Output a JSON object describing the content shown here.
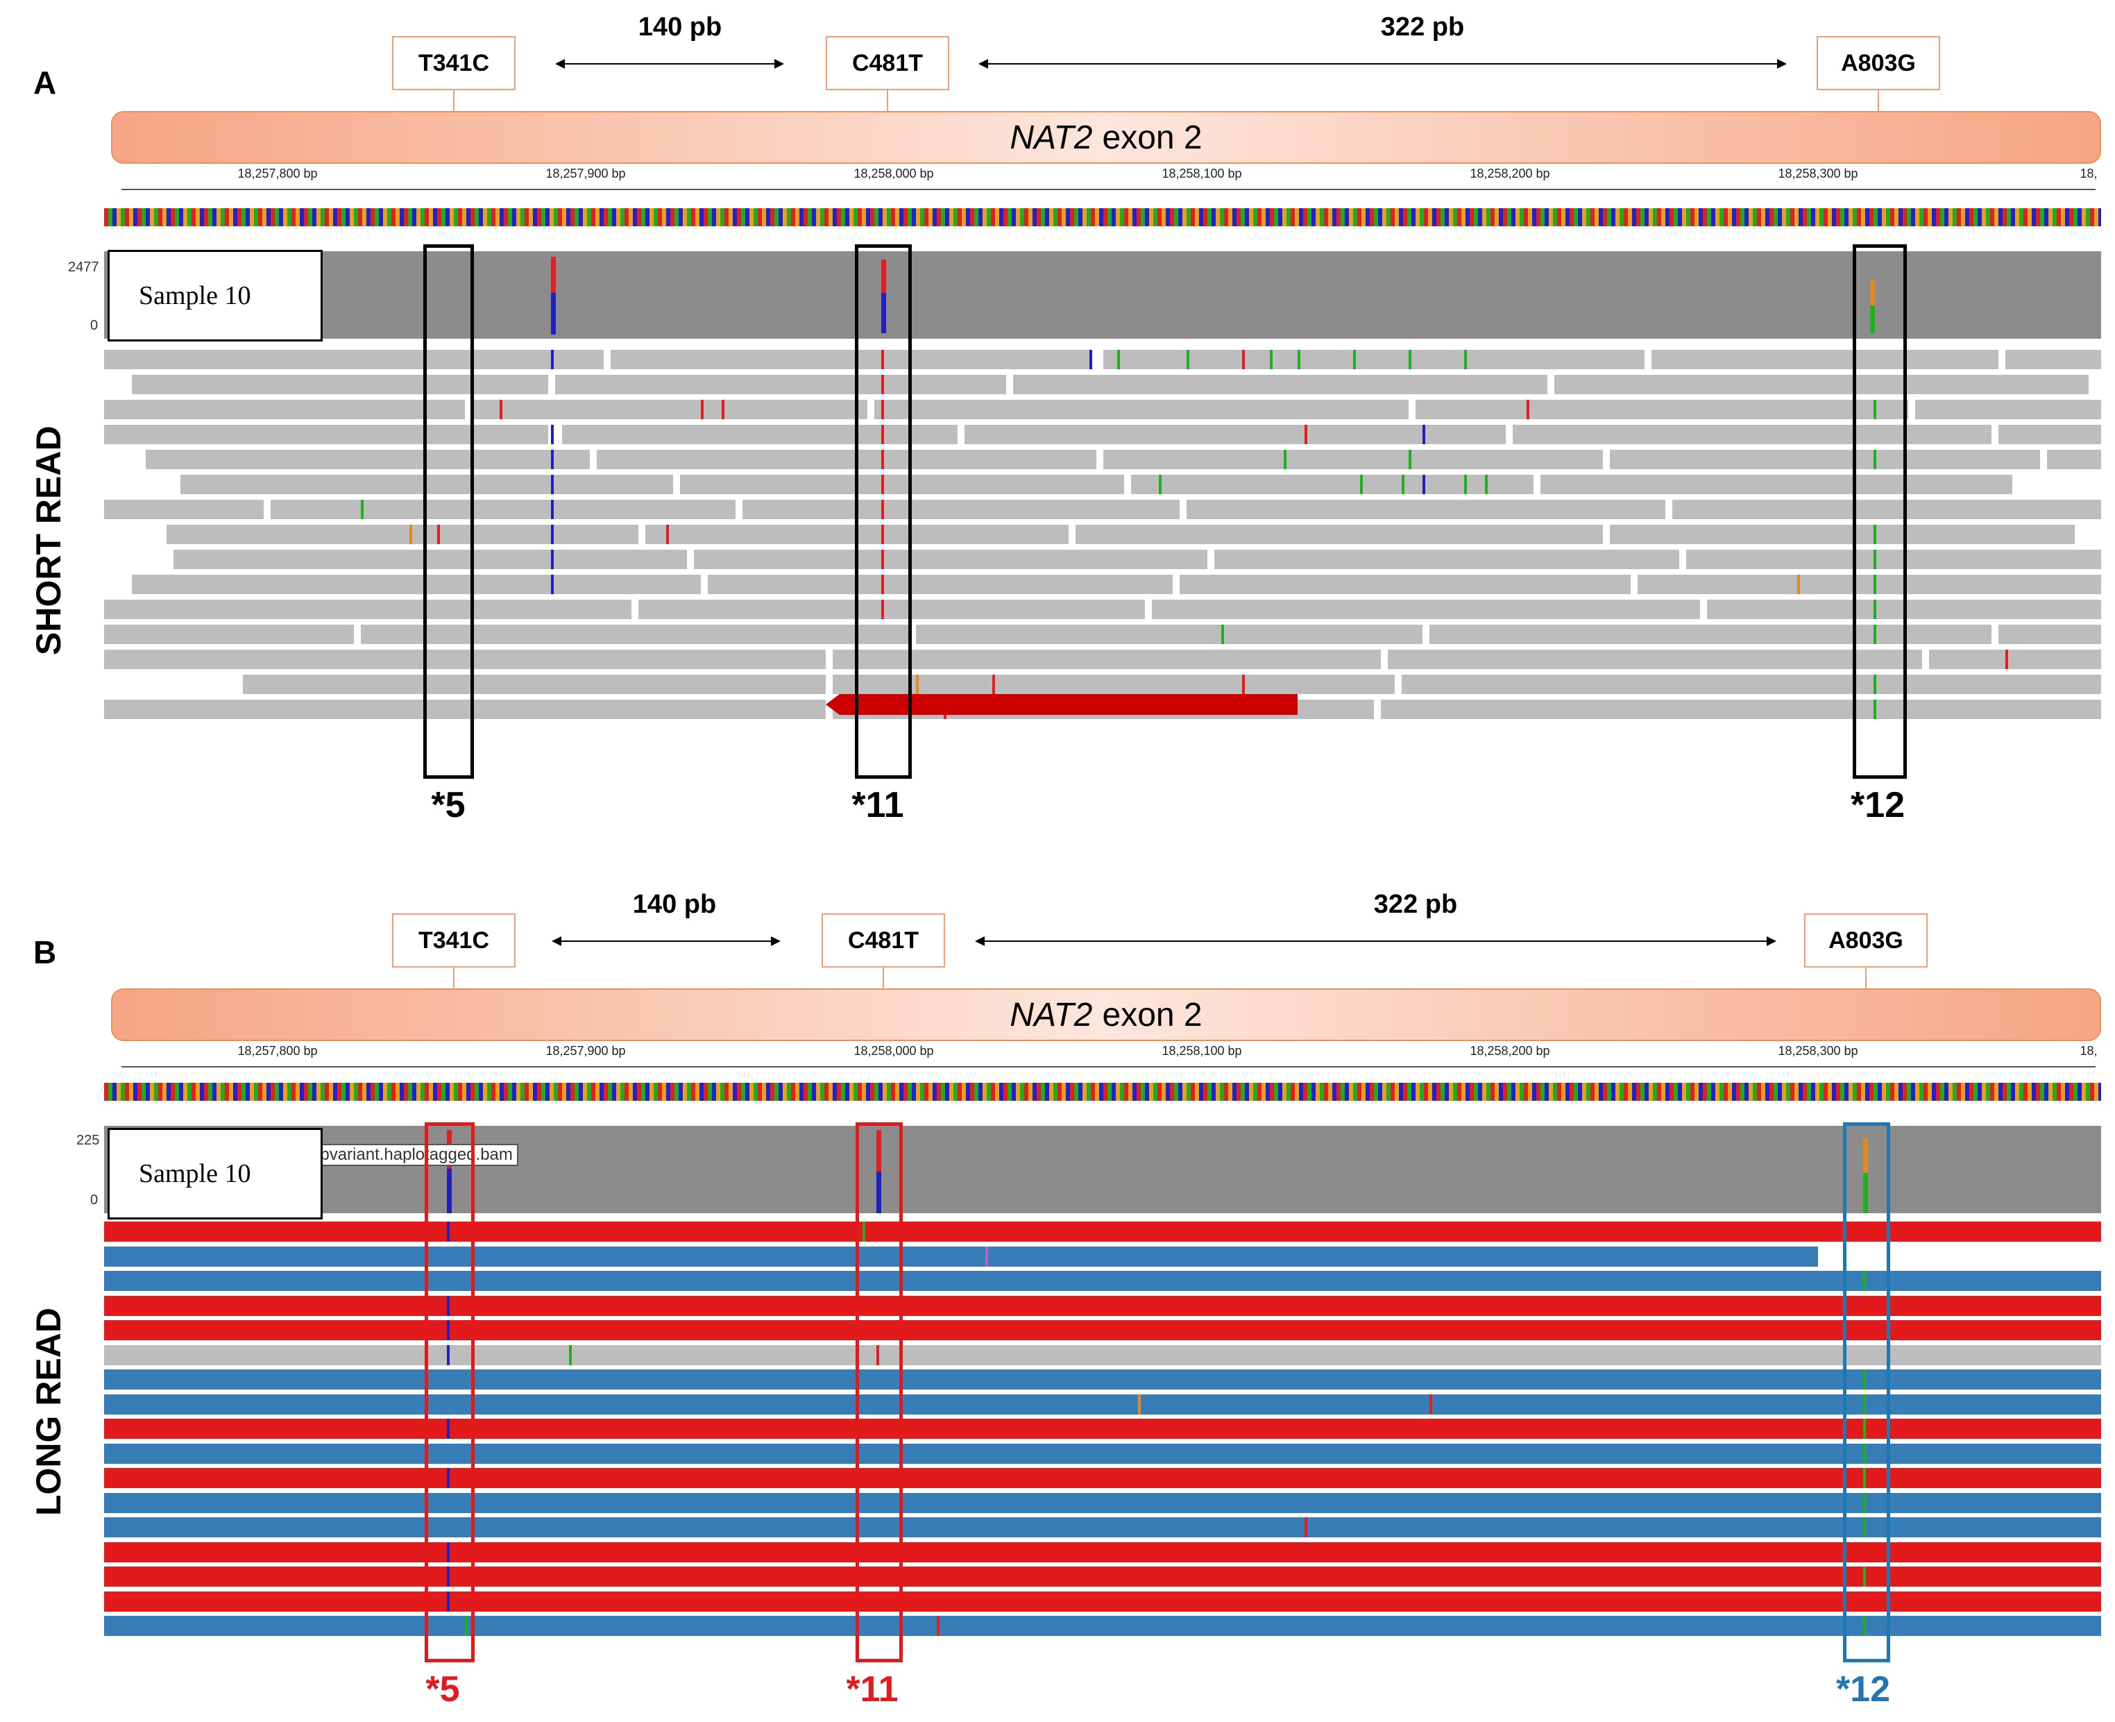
{
  "panels": [
    {
      "label": "A",
      "snps": [
        "T341C",
        "C481T",
        "A803G"
      ],
      "distances": [
        "140 pb",
        "322 pb"
      ],
      "exon": {
        "gene": "NAT2",
        "suffix": "exon 2"
      },
      "ruler_labels": [
        "18,257,800 bp",
        "18,257,900 bp",
        "18,258,000 bp",
        "18,258,100 bp",
        "18,258,200 bp",
        "18,258,300 bp",
        "18,"
      ],
      "coverage_max": "2477",
      "coverage_min": "0",
      "sample": "Sample 10",
      "track_title": "SHORT READ",
      "stars": [
        "*5",
        "*11",
        "*12"
      ]
    },
    {
      "label": "B",
      "snps": [
        "T341C",
        "C481T",
        "A803G"
      ],
      "distances": [
        "140 pb",
        "322 pb"
      ],
      "exon": {
        "gene": "NAT2",
        "suffix": "exon 2"
      },
      "ruler_labels": [
        "18,257,800 bp",
        "18,257,900 bp",
        "18,258,000 bp",
        "18,258,100 bp",
        "18,258,200 bp",
        "18,258,300 bp",
        "18,"
      ],
      "coverage_max": "225",
      "coverage_min": "0",
      "sample": "Sample 10",
      "bam_label": "epvariant.haplotagged.bam",
      "track_title": "LONG READ",
      "stars": [
        "*5",
        "*11",
        "*12"
      ]
    }
  ],
  "colors": {
    "exon": "#f6a583",
    "read_grey": "#bdbdbd",
    "hap1": "#e31a1c",
    "hap2": "#377eb8",
    "box_star5": "#e31a1c",
    "box_star11": "#e31a1c",
    "box_star12": "#1f78b4"
  }
}
